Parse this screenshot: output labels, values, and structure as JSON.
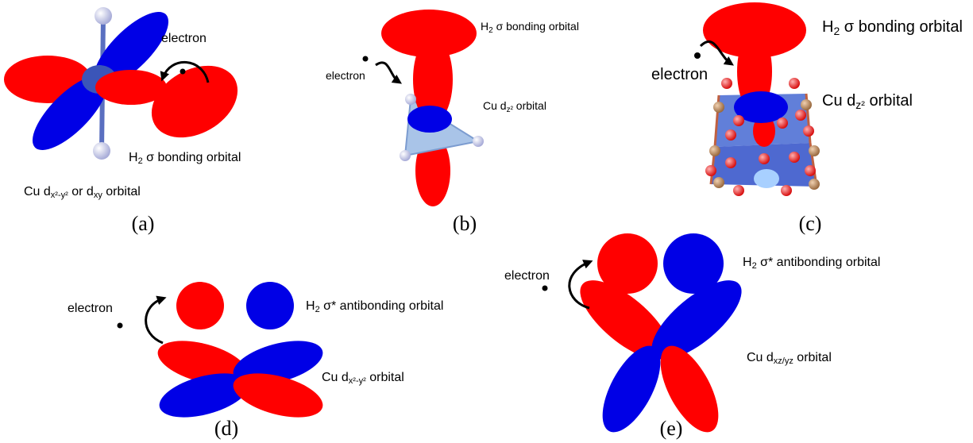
{
  "panels": [
    {
      "electron": "electron",
      "labels": [
        [
          {
            "text": "H"
          },
          {
            "sub": "2"
          },
          {
            "text": " σ bonding orbital"
          }
        ],
        [
          {
            "text": "Cu d"
          },
          {
            "sub": "x²-y²"
          },
          {
            "text": " or d"
          },
          {
            "sub": "xy"
          },
          {
            "text": " orbital"
          }
        ]
      ],
      "caption": "(a)"
    },
    {
      "electron": "electron",
      "labels": [
        [
          {
            "text": "H"
          },
          {
            "sub": "2"
          },
          {
            "text": " σ bonding orbital"
          }
        ],
        [
          {
            "text": "Cu d"
          },
          {
            "sub": "z²"
          },
          {
            "text": " orbital"
          }
        ]
      ],
      "caption": "(b)"
    },
    {
      "electron": "electron",
      "labels": [
        [
          {
            "text": "H"
          },
          {
            "sub": "2"
          },
          {
            "text": " σ bonding orbital"
          }
        ],
        [
          {
            "text": "Cu d"
          },
          {
            "sub": "z²"
          },
          {
            "text": " orbital"
          }
        ]
      ],
      "caption": "(c)"
    },
    {
      "electron": "electron",
      "labels": [
        [
          {
            "text": "H"
          },
          {
            "sub": "2"
          },
          {
            "text": " σ* antibonding orbital"
          }
        ],
        [
          {
            "text": "Cu d"
          },
          {
            "sub": "x²-y²"
          },
          {
            "text": " orbital"
          }
        ]
      ],
      "caption": "(d)"
    },
    {
      "electron": "electron",
      "labels": [
        [
          {
            "text": "H"
          },
          {
            "sub": "2"
          },
          {
            "text": " σ* antibonding orbital"
          }
        ],
        [
          {
            "text": "Cu d"
          },
          {
            "sub": "xz/yz"
          },
          {
            "text": " orbital"
          }
        ]
      ],
      "caption": "(e)"
    }
  ]
}
